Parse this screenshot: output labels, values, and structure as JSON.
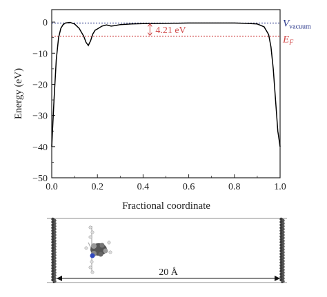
{
  "chart_data": {
    "type": "line",
    "xlabel": "Fractional coordinate",
    "ylabel": "Energy (eV)",
    "xlim": [
      0.0,
      1.0
    ],
    "ylim": [
      -50,
      4
    ],
    "xticks": [
      "0.0",
      "0.2",
      "0.4",
      "0.6",
      "0.8",
      "1.0"
    ],
    "yticks": [
      "0",
      "−10",
      "−20",
      "−30",
      "−40",
      "−50"
    ],
    "grid": false,
    "legend": "none",
    "series": [
      {
        "color": "#000000",
        "x": [
          0.0,
          0.01,
          0.02,
          0.03,
          0.04,
          0.05,
          0.06,
          0.08,
          0.1,
          0.12,
          0.14,
          0.15,
          0.16,
          0.17,
          0.18,
          0.19,
          0.2,
          0.22,
          0.24,
          0.26,
          0.28,
          0.3,
          0.35,
          0.4,
          0.5,
          0.6,
          0.7,
          0.8,
          0.85,
          0.9,
          0.93,
          0.95,
          0.96,
          0.97,
          0.98,
          0.99,
          1.0
        ],
        "y": [
          -40,
          -25,
          -12,
          -5,
          -2,
          -0.8,
          -0.3,
          -0.1,
          -0.6,
          -2.0,
          -4.5,
          -6.5,
          -7.5,
          -6.0,
          -3.8,
          -2.6,
          -2.2,
          -1.3,
          -0.9,
          -1.3,
          -1.1,
          -0.8,
          -0.6,
          -0.5,
          -0.4,
          -0.3,
          -0.3,
          -0.3,
          -0.4,
          -0.6,
          -1.5,
          -4,
          -8,
          -15,
          -25,
          -35,
          -40
        ]
      }
    ],
    "annotations": {
      "vacuum_level": -0.3,
      "fermi_level": -4.51,
      "vacuum_label": "V",
      "vacuum_sub": "vacuum",
      "fermi_label": "E",
      "fermi_sub": "F",
      "gap_label": "4.21 eV",
      "colors": {
        "vacuum": "#2c3a8c",
        "fermi": "#d04a4a"
      }
    }
  },
  "structure": {
    "distance_label": "20 Å"
  }
}
